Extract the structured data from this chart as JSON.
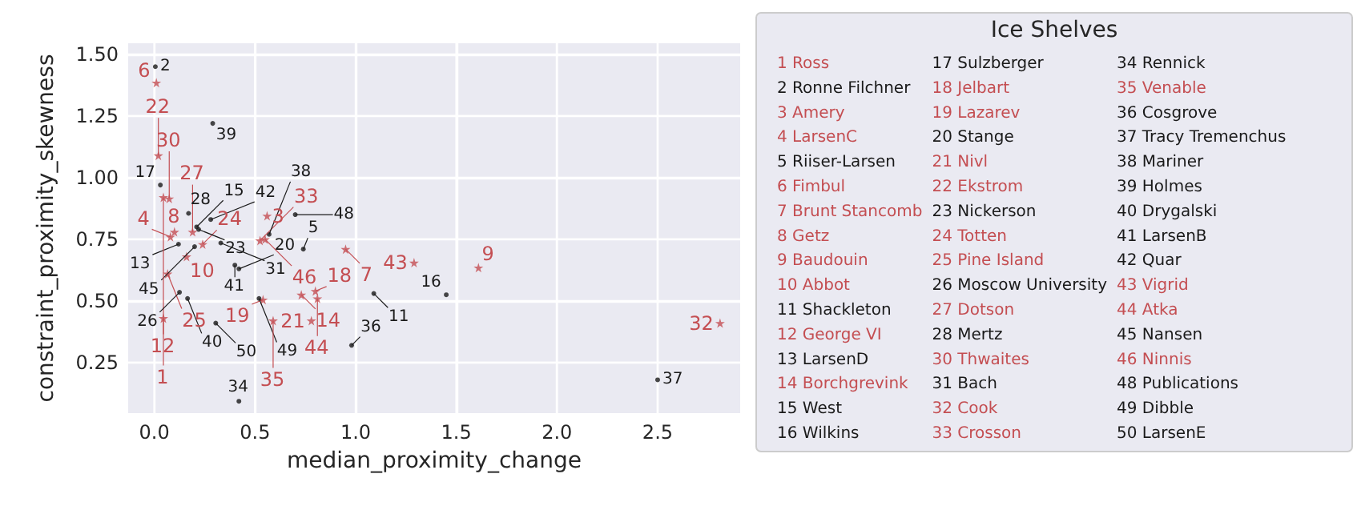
{
  "chart_data": {
    "type": "scatter",
    "xlabel": "median_proximity_change",
    "ylabel": "constraint_proximity_skewness",
    "legend_title": "Ice Shelves",
    "grid": true,
    "xlim": [
      -0.13,
      2.91
    ],
    "ylim": [
      0.045,
      1.545
    ],
    "xticks": [
      {
        "value": 0,
        "label": "0.0"
      },
      0.5,
      {
        "value": 1,
        "label": "1.0"
      },
      1.5,
      {
        "value": 2,
        "label": "2.0"
      },
      2.5
    ],
    "yticks": [
      0.25,
      {
        "value": 0.5,
        "label": "0.50"
      },
      0.75,
      {
        "value": 1,
        "label": "1.00"
      },
      1.25,
      {
        "value": 1.5,
        "label": "1.50"
      }
    ],
    "series": [
      {
        "color": "#c44e52",
        "marker": "star",
        "x": [
          0.045,
          0.56,
          0.08,
          0.01,
          0.95,
          0.1,
          1.61,
          0.16,
          0.045,
          0.73,
          0.8,
          0.54,
          0.78,
          0.02,
          0.24,
          0.066,
          0.19,
          0.074,
          2.81,
          0.525,
          0.59,
          1.29,
          0.81,
          0.55
        ],
        "values": [
          0.43,
          0.845,
          0.76,
          1.385,
          0.71,
          0.78,
          0.635,
          0.68,
          0.92,
          0.525,
          0.54,
          0.505,
          0.42,
          1.09,
          0.73,
          0.61,
          0.78,
          0.915,
          0.41,
          0.745,
          0.42,
          0.655,
          0.51,
          0.75
        ]
      },
      {
        "color": "#1a1a1a",
        "marker": "circle",
        "x": [
          0.005,
          0.74,
          1.09,
          0.12,
          0.21,
          1.45,
          0.03,
          0.42,
          0.22,
          0.125,
          0.17,
          0.33,
          0.42,
          0.98,
          2.5,
          0.57,
          0.29,
          0.165,
          0.4,
          0.28,
          0.2,
          0.7,
          0.52,
          0.305
        ],
        "values": [
          1.45,
          0.71,
          0.53,
          0.73,
          0.8,
          0.525,
          0.97,
          0.63,
          0.79,
          0.535,
          0.855,
          0.735,
          0.093,
          0.32,
          0.18,
          0.77,
          1.22,
          0.51,
          0.645,
          0.83,
          0.72,
          0.85,
          0.51,
          0.41
        ]
      }
    ],
    "annotations": [
      {
        "text": "1",
        "x": 0.045,
        "y": 0.43
      },
      {
        "text": "2",
        "x": 0.005,
        "y": 1.45
      },
      {
        "text": "3",
        "x": 0.56,
        "y": 0.845
      },
      {
        "text": "4",
        "x": 0.08,
        "y": 0.76
      },
      {
        "text": "5",
        "x": 0.74,
        "y": 0.71
      },
      {
        "text": "6",
        "x": 0.01,
        "y": 1.385
      },
      {
        "text": "7",
        "x": 0.95,
        "y": 0.71
      },
      {
        "text": "8",
        "x": 0.1,
        "y": 0.78
      },
      {
        "text": "9",
        "x": 1.61,
        "y": 0.635
      },
      {
        "text": "10",
        "x": 0.16,
        "y": 0.68
      },
      {
        "text": "11",
        "x": 1.09,
        "y": 0.53
      },
      {
        "text": "12",
        "x": 0.045,
        "y": 0.92
      },
      {
        "text": "13",
        "x": 0.12,
        "y": 0.73
      },
      {
        "text": "14",
        "x": 0.73,
        "y": 0.525
      },
      {
        "text": "15",
        "x": 0.21,
        "y": 0.8
      },
      {
        "text": "16",
        "x": 1.45,
        "y": 0.525
      },
      {
        "text": "17",
        "x": 0.03,
        "y": 0.97
      },
      {
        "text": "18",
        "x": 0.8,
        "y": 0.54
      },
      {
        "text": "19",
        "x": 0.54,
        "y": 0.505
      },
      {
        "text": "20",
        "x": 0.42,
        "y": 0.63
      },
      {
        "text": "21",
        "x": 0.78,
        "y": 0.42
      },
      {
        "text": "22",
        "x": 0.02,
        "y": 1.09
      },
      {
        "text": "23",
        "x": 0.22,
        "y": 0.79
      },
      {
        "text": "24",
        "x": 0.24,
        "y": 0.73
      },
      {
        "text": "25",
        "x": 0.066,
        "y": 0.61
      },
      {
        "text": "26",
        "x": 0.125,
        "y": 0.535
      },
      {
        "text": "27",
        "x": 0.19,
        "y": 0.78
      },
      {
        "text": "28",
        "x": 0.17,
        "y": 0.855
      },
      {
        "text": "30",
        "x": 0.074,
        "y": 0.915
      },
      {
        "text": "31",
        "x": 0.33,
        "y": 0.735
      },
      {
        "text": "32",
        "x": 2.81,
        "y": 0.41
      },
      {
        "text": "33",
        "x": 0.525,
        "y": 0.745
      },
      {
        "text": "34",
        "x": 0.42,
        "y": 0.093
      },
      {
        "text": "35",
        "x": 0.59,
        "y": 0.42
      },
      {
        "text": "36",
        "x": 0.98,
        "y": 0.32
      },
      {
        "text": "37",
        "x": 2.5,
        "y": 0.18
      },
      {
        "text": "38",
        "x": 0.57,
        "y": 0.77
      },
      {
        "text": "39",
        "x": 0.29,
        "y": 1.22
      },
      {
        "text": "40",
        "x": 0.165,
        "y": 0.51
      },
      {
        "text": "41",
        "x": 0.4,
        "y": 0.645
      },
      {
        "text": "42",
        "x": 0.28,
        "y": 0.83
      },
      {
        "text": "43",
        "x": 1.29,
        "y": 0.655
      },
      {
        "text": "44",
        "x": 0.81,
        "y": 0.51
      },
      {
        "text": "45",
        "x": 0.2,
        "y": 0.72
      },
      {
        "text": "46",
        "x": 0.55,
        "y": 0.75
      },
      {
        "text": "48",
        "x": 0.7,
        "y": 0.85
      },
      {
        "text": "49",
        "x": 0.52,
        "y": 0.51
      },
      {
        "text": "50",
        "x": 0.305,
        "y": 0.41
      },
      "1 Ross",
      "2 Ronne Filchner",
      "3 Amery",
      "4 LarsenC",
      "5 Riiser-Larsen",
      "6 Fimbul",
      "7 Brunt Stancomb",
      "8 Getz",
      "9 Baudouin",
      "10 Abbot",
      "11 Shackleton",
      "12 George VI",
      "13 LarsenD",
      "14 Borchgrevink",
      "15 West",
      "16 Wilkins",
      "17 Sulzberger",
      "18 Jelbart",
      "19 Lazarev",
      "20 Stange",
      "21 Nivl",
      "22 Ekstrom",
      "23 Nickerson",
      "24 Totten",
      "25 Pine Island",
      "26 Moscow University",
      "27 Dotson",
      "28 Mertz",
      "30 Thwaites",
      "31 Bach",
      "32 Cook",
      "33 Crosson",
      "34 Rennick",
      "35 Venable",
      "36 Cosgrove",
      "37 Tracy Tremenchus",
      "38 Mariner",
      "39 Holmes",
      "40 Drygalski",
      "41 LarsenB",
      "42 Quar",
      "43 Vigrid",
      "44 Atka",
      "45 Nansen",
      "46 Ninnis",
      "48 Publications",
      "49 Dibble",
      "50 LarsenE"
    ]
  }
}
